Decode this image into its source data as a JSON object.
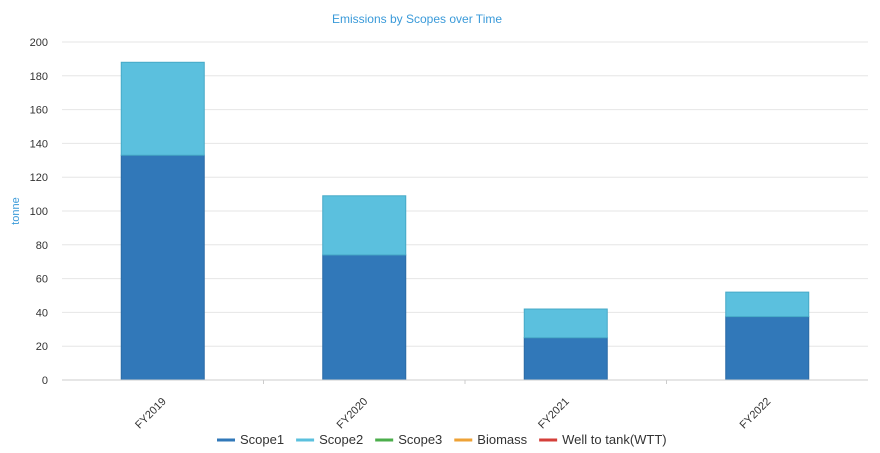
{
  "chart_data": {
    "type": "bar",
    "stacked": true,
    "title": "Emissions by Scopes over Time",
    "xlabel": "",
    "ylabel": "tonne",
    "ylim": [
      0,
      200
    ],
    "yticks": [
      0,
      20,
      40,
      60,
      80,
      100,
      120,
      140,
      160,
      180,
      200
    ],
    "grid": true,
    "legend_position": "bottom",
    "categories": [
      "FY2019",
      "FY2020",
      "FY2021",
      "FY2022"
    ],
    "series": [
      {
        "name": "Scope1",
        "color": "#3178b9",
        "values": [
          133,
          74,
          25,
          37.5
        ]
      },
      {
        "name": "Scope2",
        "color": "#5bc0de",
        "values": [
          55,
          35,
          17,
          14.5
        ]
      },
      {
        "name": "Scope3",
        "color": "#4cae4c",
        "values": [
          0,
          0,
          0,
          0
        ]
      },
      {
        "name": "Biomass",
        "color": "#eea236",
        "values": [
          0,
          0,
          0,
          0
        ]
      },
      {
        "name": "Well to tank(WTT)",
        "color": "#d43f3a",
        "values": [
          0,
          0,
          0,
          0
        ]
      }
    ]
  }
}
